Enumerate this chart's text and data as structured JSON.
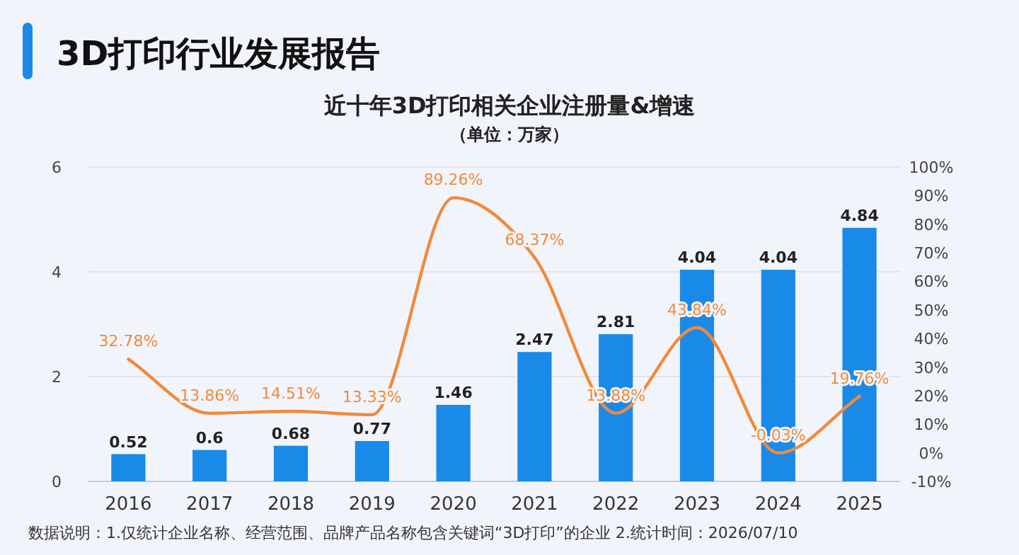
{
  "chart_data": {
    "type": "bar",
    "title": "3D打印行业发展报告",
    "subtitle": "近十年3D打印相关企业注册量&增速",
    "categories": [
      "2016",
      "2017",
      "2018",
      "2019",
      "2020",
      "2021",
      "2022",
      "2023",
      "2024",
      "2025"
    ],
    "series": [
      {
        "color": "#1a8ae8",
        "values": [
          0.52,
          0.6,
          0.68,
          0.77,
          1.46,
          2.47,
          2.81,
          4.04,
          4.04,
          4.84
        ],
        "value_labels": [
          "0.52",
          "0.6",
          "0.68",
          "0.77",
          "1.46",
          "2.47",
          "2.81",
          "4.04",
          "4.04",
          "4.84"
        ]
      },
      {
        "type": "line",
        "axis": "y2",
        "color": "#f08a3c",
        "values": [
          32.78,
          13.86,
          14.51,
          13.33,
          89.26,
          68.37,
          13.88,
          43.84,
          -0.03,
          19.76
        ],
        "value_labels": [
          "32.78%",
          "13.86%",
          "14.51%",
          "13.33%",
          "89.26%",
          "68.37%",
          "13.88%",
          "43.84%",
          "-0.03%",
          "19.76%"
        ]
      }
    ],
    "ylim": [
      0,
      6
    ],
    "yticks": [
      0,
      2,
      4,
      6
    ],
    "y2lim": [
      -10,
      100
    ],
    "y2ticks": [
      {
        "value": -10,
        "label": "-10%"
      },
      {
        "value": 0,
        "label": "0%"
      },
      {
        "value": 10,
        "label": "10%"
      },
      {
        "value": 20,
        "label": "20%"
      },
      {
        "value": 30,
        "label": "30%"
      },
      {
        "value": 40,
        "label": "40%"
      },
      {
        "value": 50,
        "label": "50%"
      },
      {
        "value": 60,
        "label": "60%"
      },
      {
        "value": 70,
        "label": "70%"
      },
      {
        "value": 80,
        "label": "80%"
      },
      {
        "value": 90,
        "label": "90%"
      },
      {
        "value": 100,
        "label": "100%"
      }
    ],
    "grid": "y",
    "marker": "none",
    "annotations": [
      "（单位：万家）",
      "数据说明：1.仅统计企业名称、经营范围、品牌产品名称包含关键词“3D打印”的企业  2.统计时间：2026/07/10"
    ]
  }
}
